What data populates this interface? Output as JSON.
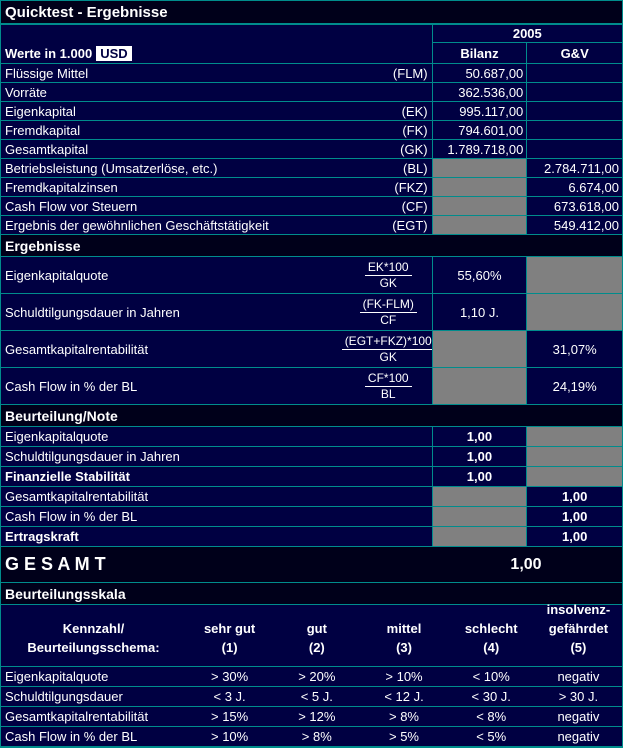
{
  "title": "Quicktest - Ergebnisse",
  "colors": {
    "background": "#000042",
    "section_bar": "#00001A",
    "gridline": "#008C8C",
    "disabled_cell": "#808080",
    "text": "#FFFFFF",
    "selected_cell_bg": "#FFFFFF"
  },
  "header": {
    "year": "2005",
    "unit_label": "Werte in 1.000",
    "currency": "USD",
    "columns": {
      "bilanz": "Bilanz",
      "gv": "G&V"
    }
  },
  "inputs": {
    "rows": [
      {
        "label": "Flüssige Mittel",
        "abbr": "(FLM)",
        "bilanz": "50.687,00",
        "gv": ""
      },
      {
        "label": "Vorräte",
        "abbr": "",
        "bilanz": "362.536,00",
        "gv": ""
      },
      {
        "label": "Eigenkapital",
        "abbr": "(EK)",
        "bilanz": "995.117,00",
        "gv": ""
      },
      {
        "label": "Fremdkapital",
        "abbr": "(FK)",
        "bilanz": "794.601,00",
        "gv": ""
      },
      {
        "label": "Gesamtkapital",
        "abbr": "(GK)",
        "bilanz": "1.789.718,00",
        "gv": ""
      },
      {
        "label": "Betriebsleistung (Umsatzerlöse, etc.)",
        "abbr": "(BL)",
        "bilanz": "",
        "gv": "2.784.711,00"
      },
      {
        "label": "Fremdkapitalzinsen",
        "abbr": "(FKZ)",
        "bilanz": "",
        "gv": "6.674,00"
      },
      {
        "label": "Cash Flow vor Steuern",
        "abbr": "(CF)",
        "bilanz": "",
        "gv": "673.618,00"
      },
      {
        "label": "Ergebnis der gewöhnlichen Geschäftstätigkeit",
        "abbr": "(EGT)",
        "bilanz": "",
        "gv": "549.412,00"
      }
    ]
  },
  "results": {
    "title": "Ergebnisse",
    "rows": [
      {
        "label": "Eigenkapitalquote",
        "numerator": "EK*100",
        "denominator": "GK",
        "bilanz": "55,60%",
        "gv": "",
        "value_col": "bilanz"
      },
      {
        "label": "Schuldtilgungsdauer in Jahren",
        "numerator": "(FK-FLM)",
        "denominator": "CF",
        "bilanz": "1,10 J.",
        "gv": "",
        "value_col": "bilanz"
      },
      {
        "label": "Gesamtkapitalrentabilität",
        "numerator": "(EGT+FKZ)*100",
        "denominator": "GK",
        "bilanz": "",
        "gv": "31,07%",
        "value_col": "gv"
      },
      {
        "label": "Cash Flow in % der BL",
        "numerator": "CF*100",
        "denominator": "BL",
        "bilanz": "",
        "gv": "24,19%",
        "value_col": "gv"
      }
    ]
  },
  "ratings": {
    "title": "Beurteilung/Note",
    "rows": [
      {
        "label": "Eigenkapitalquote",
        "bilanz": "1,00",
        "gv": ""
      },
      {
        "label": "Schuldtilgungsdauer in Jahren",
        "bilanz": "1,00",
        "gv": ""
      },
      {
        "label": "Finanzielle Stabilität",
        "bilanz": "1,00",
        "gv": ""
      },
      {
        "label": "Gesamtkapitalrentabilität",
        "bilanz": "",
        "gv": "1,00"
      },
      {
        "label": "Cash Flow in % der BL",
        "bilanz": "",
        "gv": "1,00"
      },
      {
        "label": "Ertragskraft",
        "bilanz": "",
        "gv": "1,00"
      }
    ]
  },
  "total": {
    "label": "G E S A M T",
    "value": "1,00"
  },
  "scale": {
    "title": "Beurteilungsskala",
    "corner_line1": "Kennzahl/",
    "corner_line2": "Beurteilungsschema:",
    "grade_headers": [
      {
        "line1": "sehr gut",
        "line2": "(1)"
      },
      {
        "line1": "gut",
        "line2": "(2)"
      },
      {
        "line1": "mittel",
        "line2": "(3)"
      },
      {
        "line1": "schlecht",
        "line2": "(4)"
      },
      {
        "line1": "insolvenz-",
        "line2": "gefährdet",
        "line3": "(5)"
      }
    ],
    "rows": [
      {
        "label": "Eigenkapitalquote",
        "values": [
          "> 30%",
          "> 20%",
          "> 10%",
          "< 10%",
          "negativ"
        ]
      },
      {
        "label": "Schuldtilgungsdauer",
        "values": [
          "< 3 J.",
          "< 5 J.",
          "< 12 J.",
          "< 30 J.",
          "> 30 J."
        ]
      },
      {
        "label": "Gesamtkapitalrentabilität",
        "values": [
          "> 15%",
          "> 12%",
          "> 8%",
          "< 8%",
          "negativ"
        ]
      },
      {
        "label": "Cash Flow in % der BL",
        "values": [
          "> 10%",
          "> 8%",
          "> 5%",
          "< 5%",
          "negativ"
        ]
      }
    ]
  }
}
